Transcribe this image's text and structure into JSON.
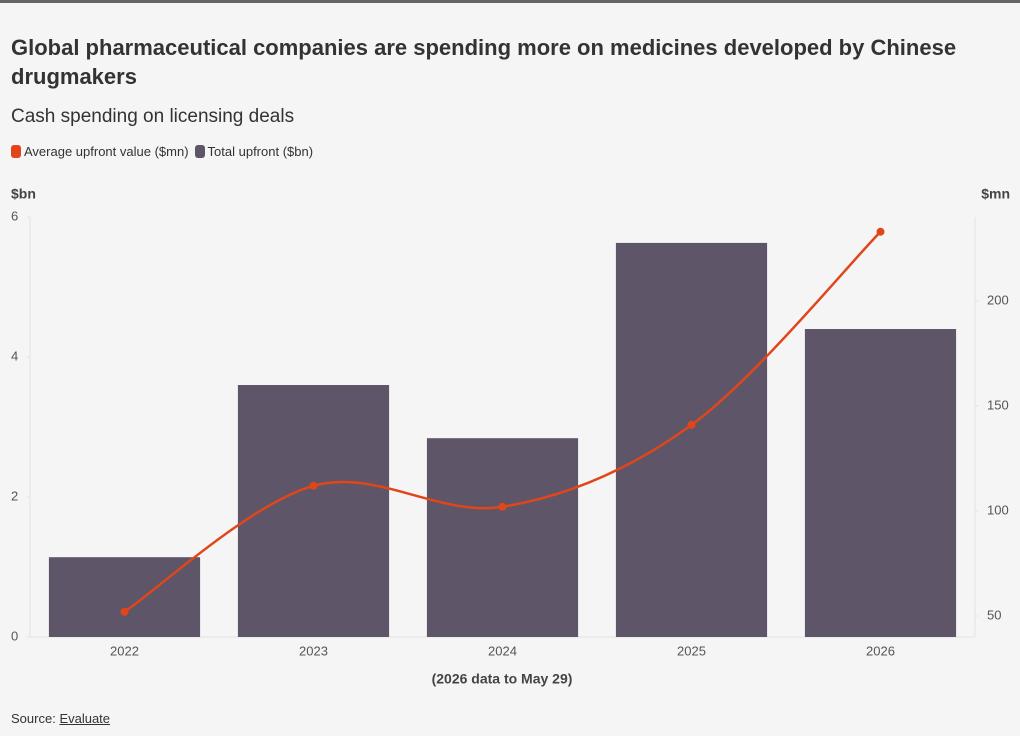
{
  "chart_data": {
    "type": "combo",
    "title": "Global pharmaceutical companies are spending more on medicines developed by Chinese drugmakers",
    "subtitle": "Cash spending on licensing deals",
    "categories": [
      "2022",
      "2023",
      "2024",
      "2025",
      "2026"
    ],
    "series": [
      {
        "name": "Average upfront value ($mn)",
        "color": "#e0461a",
        "type": "line",
        "axis": "y2",
        "values": [
          52,
          112,
          102,
          141,
          233
        ]
      },
      {
        "name": "Total upfront ($bn)",
        "color": "#5e5568",
        "type": "bar",
        "values": [
          1.14,
          3.6,
          2.84,
          5.63,
          4.4
        ]
      }
    ],
    "ylabel": "$bn",
    "y2label": "$mn",
    "ylim": [
      0,
      6
    ],
    "yticks": [
      0,
      2,
      4,
      6
    ],
    "y2lim": [
      40,
      240
    ],
    "y2ticks": [
      50,
      100,
      150,
      200
    ],
    "note": "(2026 data to May 29)",
    "source_label": "Source:",
    "source": "Evaluate"
  }
}
